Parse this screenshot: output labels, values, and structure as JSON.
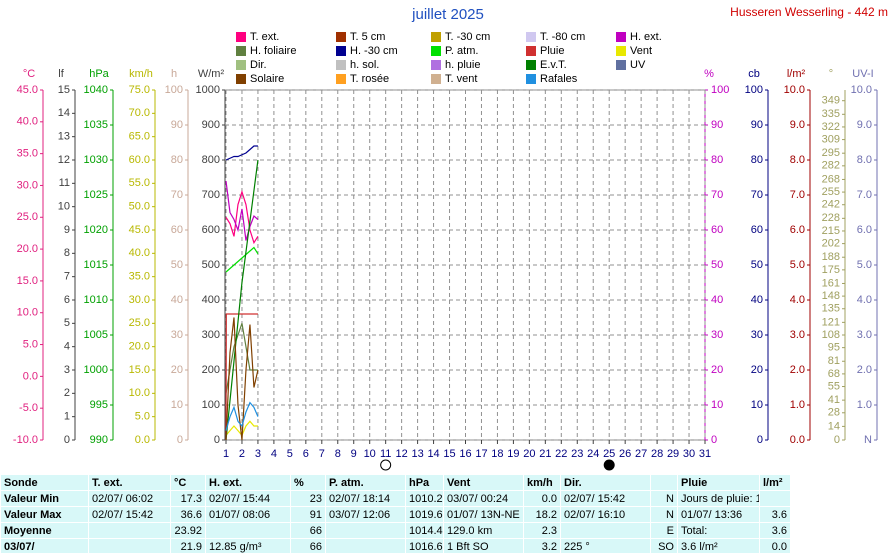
{
  "chart_data": {
    "type": "line",
    "title": "juillet 2025",
    "station": "Husseren Wesserling - 442 m",
    "xlim": [
      1,
      31
    ],
    "xticks": [
      1,
      2,
      3,
      4,
      5,
      6,
      7,
      8,
      9,
      10,
      11,
      12,
      13,
      14,
      15,
      16,
      17,
      18,
      19,
      20,
      21,
      22,
      23,
      24,
      25,
      26,
      27,
      28,
      29,
      30,
      31
    ],
    "grid": true,
    "moon": {
      "full": 11,
      "new": 25
    },
    "axes": [
      {
        "label": "°C",
        "side": "left",
        "color": "#e0207f",
        "lim": [
          -10,
          45
        ],
        "ticks": [
          {
            "value": -10,
            "label": "-10.0"
          },
          {
            "value": -5,
            "label": "-5.0"
          },
          {
            "value": 0,
            "label": "0.0"
          },
          {
            "value": 5,
            "label": "5.0"
          },
          {
            "value": 10,
            "label": "10.0"
          },
          {
            "value": 15,
            "label": "15.0"
          },
          {
            "value": 20,
            "label": "20.0"
          },
          {
            "value": 25,
            "label": "25.0"
          },
          {
            "value": 30,
            "label": "30.0"
          },
          {
            "value": 35,
            "label": "35.0"
          },
          {
            "value": 40,
            "label": "40.0"
          },
          {
            "value": 45,
            "label": "45.0"
          }
        ]
      },
      {
        "label": "lf",
        "side": "left",
        "color": "#404040",
        "lim": [
          0,
          15
        ],
        "ticks": [
          0,
          1,
          2,
          3,
          4,
          5,
          6,
          7,
          8,
          9,
          10,
          11,
          12,
          13,
          14,
          15
        ]
      },
      {
        "label": "hPa",
        "side": "left",
        "color": "#00a000",
        "lim": [
          990,
          1040
        ],
        "ticks": [
          990,
          995,
          1000,
          1005,
          1010,
          1015,
          1020,
          1025,
          1030,
          1035,
          1040
        ]
      },
      {
        "label": "km/h",
        "side": "left",
        "color": "#b8b800",
        "lim": [
          0,
          75
        ],
        "ticks": [
          {
            "value": 0,
            "label": "0.0"
          },
          {
            "value": 5,
            "label": "5.0"
          },
          {
            "value": 10,
            "label": "10.0"
          },
          {
            "value": 15,
            "label": "15.0"
          },
          {
            "value": 20,
            "label": "20.0"
          },
          {
            "value": 25,
            "label": "25.0"
          },
          {
            "value": 30,
            "label": "30.0"
          },
          {
            "value": 35,
            "label": "35.0"
          },
          {
            "value": 40,
            "label": "40.0"
          },
          {
            "value": 45,
            "label": "45.0"
          },
          {
            "value": 50,
            "label": "50.0"
          },
          {
            "value": 55,
            "label": "55.0"
          },
          {
            "value": 60,
            "label": "60.0"
          },
          {
            "value": 65,
            "label": "65.0"
          },
          {
            "value": 70,
            "label": "70.0"
          },
          {
            "value": 75,
            "label": "75.0"
          }
        ]
      },
      {
        "label": "h",
        "side": "left",
        "color": "#c8a898",
        "lim": [
          0,
          100
        ],
        "ticks": [
          0,
          10,
          20,
          30,
          40,
          50,
          60,
          70,
          80,
          90,
          100
        ]
      },
      {
        "label": "W/m²",
        "side": "left",
        "color": "#404040",
        "lim": [
          0,
          1000
        ],
        "ticks": [
          0,
          100,
          200,
          300,
          400,
          500,
          600,
          700,
          800,
          900,
          1000
        ]
      },
      {
        "label": "%",
        "side": "right",
        "color": "#c000c0",
        "lim": [
          0,
          100
        ],
        "ticks": [
          0,
          10,
          20,
          30,
          40,
          50,
          60,
          70,
          80,
          90,
          100
        ]
      },
      {
        "label": "cb",
        "side": "right",
        "color": "#000080",
        "lim": [
          0,
          100
        ],
        "ticks": [
          0,
          10,
          20,
          30,
          40,
          50,
          60,
          70,
          80,
          90,
          100
        ]
      },
      {
        "label": "l/m²",
        "side": "right",
        "color": "#a00000",
        "lim": [
          0,
          10
        ],
        "ticks": [
          {
            "value": 0,
            "label": "0.0"
          },
          {
            "value": 1,
            "label": "1.0"
          },
          {
            "value": 2,
            "label": "2.0"
          },
          {
            "value": 3,
            "label": "3.0"
          },
          {
            "value": 4,
            "label": "4.0"
          },
          {
            "value": 5,
            "label": "5.0"
          },
          {
            "value": 6,
            "label": "6.0"
          },
          {
            "value": 7,
            "label": "7.0"
          },
          {
            "value": 8,
            "label": "8.0"
          },
          {
            "value": 9,
            "label": "9.0"
          },
          {
            "value": 10,
            "label": "10.0"
          }
        ]
      },
      {
        "label": "°",
        "side": "right",
        "color": "#a0a060",
        "lim": [
          0,
          360
        ],
        "ticks": [
          0,
          14,
          28,
          41,
          55,
          68,
          81,
          95,
          108,
          121,
          135,
          148,
          161,
          175,
          188,
          202,
          215,
          228,
          242,
          255,
          268,
          282,
          295,
          309,
          322,
          335,
          349
        ]
      },
      {
        "label": "UV-I",
        "side": "right",
        "color": "#7070b0",
        "lim": [
          0,
          10
        ],
        "ticks": [
          {
            "value": 0,
            "label": "N"
          },
          {
            "value": 1,
            "label": "1.0"
          },
          {
            "value": 2,
            "label": "2.0"
          },
          {
            "value": 3,
            "label": "3.0"
          },
          {
            "value": 4,
            "label": "4.0"
          },
          {
            "value": 5,
            "label": "5.0"
          },
          {
            "value": 6,
            "label": "6.0"
          },
          {
            "value": 7,
            "label": "7.0"
          },
          {
            "value": 8,
            "label": "8.0"
          },
          {
            "value": 9,
            "label": "9.0"
          },
          {
            "value": 10,
            "label": "10.0"
          }
        ]
      }
    ],
    "series": [
      {
        "name": "T. ext.",
        "color": "#ff0080",
        "axis": "°C",
        "x": [
          1,
          1.25,
          1.5,
          1.75,
          2,
          2.25,
          2.5,
          2.75,
          3
        ],
        "values": [
          25,
          24,
          22,
          27,
          29,
          27,
          23,
          21,
          22
        ]
      },
      {
        "name": "T. 5 cm",
        "color": "#a03000",
        "axis": "°C",
        "x": [],
        "values": []
      },
      {
        "name": "T. -30 cm",
        "color": "#c0a000",
        "axis": "°C",
        "x": [],
        "values": []
      },
      {
        "name": "T. -80 cm",
        "color": "#d0c8f0",
        "axis": "°C",
        "x": [],
        "values": []
      },
      {
        "name": "H. ext.",
        "color": "#c000c0",
        "axis": "%",
        "x": [
          1,
          1.25,
          1.5,
          1.75,
          2,
          2.25,
          2.5,
          2.75,
          3
        ],
        "values": [
          74,
          65,
          63,
          60,
          66,
          57,
          61,
          64,
          63
        ]
      },
      {
        "name": "H. foliaire",
        "color": "#608040",
        "axis": "lf",
        "x": [
          1,
          1.5,
          2,
          2.5,
          3
        ],
        "values": [
          2,
          4,
          5,
          3,
          3
        ]
      },
      {
        "name": "H. -30 cm",
        "color": "#000090",
        "axis": "cb",
        "x": [
          1,
          1.25,
          1.5,
          1.75,
          2,
          2.25,
          2.5,
          2.75,
          3
        ],
        "values": [
          80,
          80.5,
          81,
          81,
          81.5,
          82,
          83,
          84,
          84
        ]
      },
      {
        "name": "P. atm.",
        "color": "#00e000",
        "axis": "hPa",
        "x": [
          1,
          1.25,
          1.5,
          1.75,
          2,
          2.25,
          2.5,
          2.75,
          3
        ],
        "values": [
          1014,
          1014.5,
          1015,
          1015.5,
          1016,
          1016.5,
          1017,
          1017.5,
          1016.6
        ]
      },
      {
        "name": "Pluie",
        "color": "#d03030",
        "axis": "l/m²",
        "x": [
          1,
          1.02,
          3
        ],
        "values": [
          0,
          3.6,
          3.6
        ]
      },
      {
        "name": "Vent",
        "color": "#e8e800",
        "axis": "km/h",
        "x": [
          1,
          1.25,
          1.5,
          1.75,
          2,
          2.25,
          2.5,
          2.75,
          3
        ],
        "values": [
          1,
          2,
          3,
          2,
          1,
          3,
          4,
          3,
          3
        ]
      },
      {
        "name": "Dir.",
        "color": "#a0c080",
        "axis": "°",
        "x": [],
        "values": []
      },
      {
        "name": "h. sol.",
        "color": "#c0c0c0",
        "axis": "h",
        "x": [],
        "values": []
      },
      {
        "name": "h. pluie",
        "color": "#b070e0",
        "axis": "h",
        "x": [],
        "values": []
      },
      {
        "name": "E.v.T.",
        "color": "#008000",
        "axis": "l/m²",
        "x": [
          1,
          2,
          3
        ],
        "values": [
          0,
          4.5,
          8
        ]
      },
      {
        "name": "UV",
        "color": "#6070a0",
        "axis": "UV-I",
        "x": [],
        "values": []
      },
      {
        "name": "Solaire",
        "color": "#804000",
        "axis": "W/m²",
        "x": [
          1,
          1.25,
          1.5,
          1.75,
          2,
          2.25,
          2.5,
          2.75,
          3
        ],
        "values": [
          0,
          250,
          350,
          100,
          0,
          200,
          330,
          150,
          200
        ]
      },
      {
        "name": "T. rosée",
        "color": "#ffa020",
        "axis": "°C",
        "x": [],
        "values": []
      },
      {
        "name": "T. vent",
        "color": "#d0b090",
        "axis": "°C",
        "x": [],
        "values": []
      },
      {
        "name": "Rafales",
        "color": "#2090e0",
        "axis": "km/h",
        "x": [
          1,
          1.25,
          1.5,
          1.75,
          2,
          2.25,
          2.5,
          2.75,
          3
        ],
        "values": [
          2,
          5,
          7,
          4,
          3,
          6,
          8,
          7,
          5
        ]
      }
    ]
  },
  "table": {
    "header": [
      "Sonde",
      "T. ext.",
      "°C",
      "H. ext.",
      "%",
      "P. atm.",
      "hPa",
      "Vent",
      "km/h",
      "Dir.",
      null,
      "Pluie",
      "l/m²"
    ],
    "rows": [
      [
        "Valeur Min",
        "02/07/  06:02",
        "17.3",
        "02/07/  15:44",
        "23",
        "02/07/  18:14",
        "1010.2",
        "03/07/  00:24",
        "0.0",
        "02/07/  15:42",
        "N",
        "Jours de pluie: 1",
        null
      ],
      [
        "Valeur Max",
        "02/07/  15:42",
        "36.6",
        "01/07/  08:06",
        "91",
        "03/07/  12:06",
        "1019.6",
        "01/07/  13N-NE",
        "18.2",
        "02/07/  16:10",
        "N",
        "01/07/  13:36",
        "3.6"
      ],
      [
        "Moyenne",
        null,
        "23.92",
        null,
        "66",
        null,
        "1014.4",
        "129.0 km",
        "2.3",
        null,
        "E",
        "Total:",
        "3.6"
      ],
      [
        "03/07/",
        null,
        "21.9",
        "12.85 g/m³",
        "66",
        null,
        "1016.6",
        "1 Bft SO",
        "3.2",
        "225 °",
        "SO",
        "3.6 l/m²",
        "0.0"
      ]
    ]
  }
}
